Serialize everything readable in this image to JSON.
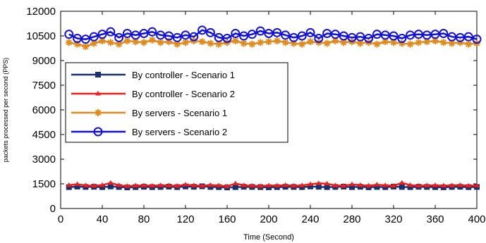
{
  "chart_data": {
    "type": "line",
    "title": "",
    "xlabel": "Time (Second)",
    "ylabel": "packets processed per second (PPS)",
    "xlim": [
      0,
      400
    ],
    "ylim": [
      0,
      12000
    ],
    "xticks": [
      0,
      40,
      80,
      120,
      160,
      200,
      240,
      280,
      320,
      360,
      400
    ],
    "yticks": [
      0,
      1500,
      3000,
      4500,
      6000,
      7500,
      9000,
      10500,
      12000
    ],
    "grid": false,
    "legend_position": "upper-left",
    "x": [
      8,
      16,
      24,
      32,
      40,
      48,
      56,
      64,
      72,
      80,
      88,
      96,
      104,
      112,
      120,
      128,
      136,
      144,
      152,
      160,
      168,
      176,
      184,
      192,
      200,
      208,
      216,
      224,
      232,
      240,
      248,
      256,
      264,
      272,
      280,
      288,
      296,
      304,
      312,
      320,
      328,
      336,
      344,
      352,
      360,
      368,
      376,
      384,
      392,
      400
    ],
    "series": [
      {
        "name": "By controller - Scenario 1",
        "color": "#1a2f6e",
        "marker": "square",
        "values": [
          1300,
          1330,
          1310,
          1320,
          1300,
          1340,
          1310,
          1280,
          1300,
          1320,
          1300,
          1310,
          1330,
          1300,
          1340,
          1320,
          1350,
          1310,
          1300,
          1280,
          1300,
          1320,
          1310,
          1300,
          1290,
          1300,
          1320,
          1310,
          1300,
          1340,
          1320,
          1300,
          1310,
          1330,
          1300,
          1320,
          1290,
          1310,
          1300,
          1330,
          1310,
          1300,
          1320,
          1310,
          1300,
          1290,
          1310,
          1320,
          1300,
          1310
        ]
      },
      {
        "name": "By controller - Scenario 2",
        "color": "#ee1c1c",
        "marker": "triangle",
        "values": [
          1420,
          1480,
          1400,
          1380,
          1420,
          1560,
          1410,
          1360,
          1390,
          1400,
          1380,
          1410,
          1400,
          1370,
          1450,
          1400,
          1380,
          1420,
          1400,
          1350,
          1520,
          1410,
          1380,
          1360,
          1400,
          1390,
          1420,
          1380,
          1400,
          1480,
          1530,
          1510,
          1400,
          1380,
          1470,
          1420,
          1390,
          1450,
          1410,
          1380,
          1560,
          1420,
          1380,
          1400,
          1410,
          1390,
          1400,
          1420,
          1380,
          1400
        ]
      },
      {
        "name": "By servers - Scenario 1",
        "color": "#e08a1e",
        "marker": "asterisk",
        "values": [
          10100,
          10000,
          9850,
          10050,
          10200,
          10100,
          10000,
          10200,
          10150,
          10100,
          10250,
          10100,
          10150,
          10000,
          10100,
          10200,
          10150,
          10050,
          10000,
          10100,
          10200,
          10050,
          10000,
          10100,
          10150,
          10200,
          10100,
          10050,
          10000,
          10150,
          10100,
          10050,
          10200,
          10100,
          10150,
          10050,
          10100,
          10000,
          10150,
          10100,
          10050,
          10000,
          10100,
          10150,
          10200,
          10100,
          10050,
          10100,
          10000,
          10050
        ]
      },
      {
        "name": "By servers - Scenario 2",
        "color": "#1010d8",
        "marker": "circle",
        "values": [
          10600,
          10350,
          10300,
          10450,
          10600,
          10750,
          10400,
          10650,
          10550,
          10650,
          10750,
          10550,
          10500,
          10400,
          10550,
          10450,
          10850,
          10700,
          10400,
          10350,
          10650,
          10500,
          10600,
          10800,
          10650,
          10700,
          10550,
          10400,
          10500,
          10700,
          10350,
          10650,
          10600,
          10500,
          10400,
          10450,
          10350,
          10600,
          10550,
          10500,
          10350,
          10550,
          10600,
          10550,
          10600,
          10650,
          10450,
          10400,
          10450,
          10300
        ]
      }
    ]
  }
}
